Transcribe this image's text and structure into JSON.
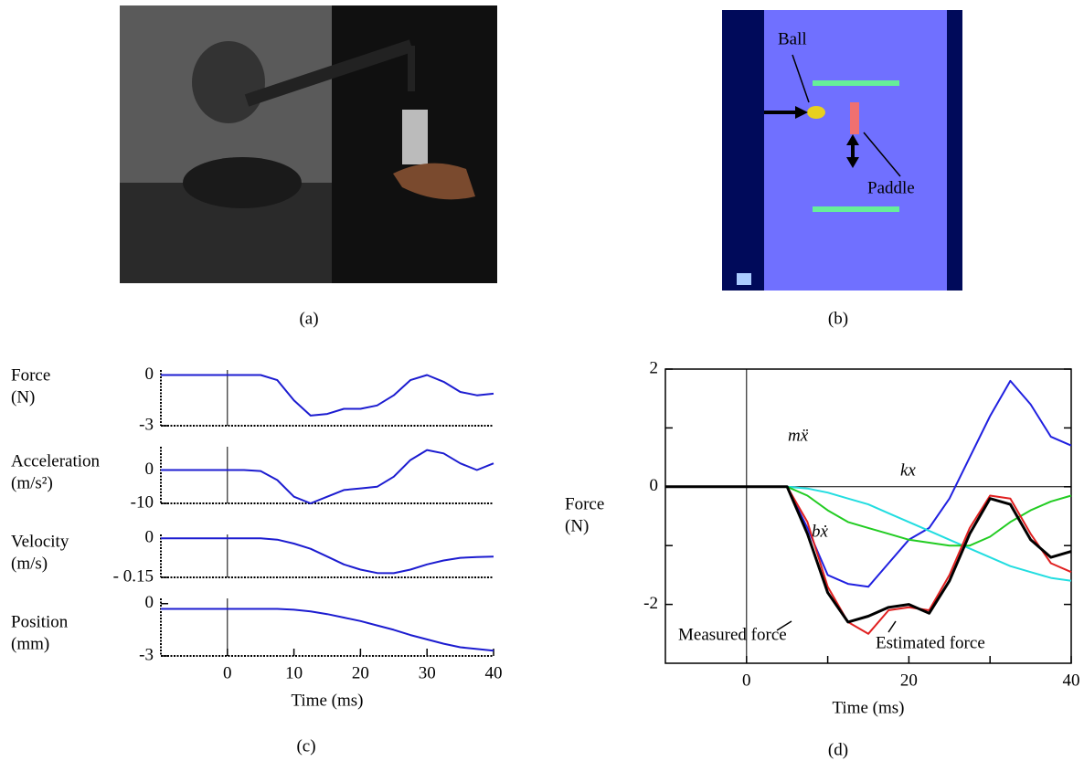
{
  "captions": [
    "(a)",
    "(b)",
    "(c)",
    "(d)"
  ],
  "diagram": {
    "labels": [
      "Ball",
      "Paddle"
    ]
  },
  "chart_data": [
    {
      "type": "line",
      "ylabel": [
        "Force",
        "(N)"
      ],
      "xlim": [
        -10,
        40
      ],
      "ylim": [
        -3,
        0.3
      ],
      "yticks": [
        0,
        -3
      ],
      "x": [
        -10,
        -5,
        0,
        2.5,
        5,
        7.5,
        10,
        12.5,
        15,
        17.5,
        20,
        22.5,
        25,
        27.5,
        30,
        32.5,
        35,
        37.5,
        40
      ],
      "series": [
        {
          "color": "#1c1cd0",
          "values": [
            0,
            0,
            0,
            0,
            0,
            -0.3,
            -1.5,
            -2.4,
            -2.3,
            -2.0,
            -2.0,
            -1.8,
            -1.2,
            -0.3,
            0,
            -0.4,
            -1.0,
            -1.2,
            -1.1
          ]
        }
      ]
    },
    {
      "type": "line",
      "ylabel": [
        "Acceleration",
        "(m/s²)"
      ],
      "xlim": [
        -10,
        40
      ],
      "ylim": [
        -10,
        7
      ],
      "yticks": [
        0,
        -10
      ],
      "x": [
        -10,
        -5,
        0,
        2.5,
        5,
        7.5,
        10,
        12.5,
        15,
        17.5,
        20,
        22.5,
        25,
        27.5,
        30,
        32.5,
        35,
        37.5,
        40
      ],
      "series": [
        {
          "color": "#1c1cd0",
          "values": [
            0,
            0,
            0,
            0,
            -0.3,
            -3,
            -8,
            -10,
            -8,
            -6,
            -5.5,
            -5,
            -2,
            3,
            6,
            5,
            2,
            0,
            2
          ]
        }
      ]
    },
    {
      "type": "line",
      "ylabel": [
        "Velocity",
        "(m/s)"
      ],
      "xlim": [
        -10,
        40
      ],
      "ylim": [
        -0.15,
        0.015
      ],
      "yticks": [
        0,
        {
          "value": -0.15,
          "label": "- 0.15"
        }
      ],
      "x": [
        -10,
        -5,
        0,
        2.5,
        5,
        7.5,
        10,
        12.5,
        15,
        17.5,
        20,
        22.5,
        25,
        27.5,
        30,
        32.5,
        35,
        37.5,
        40
      ],
      "series": [
        {
          "color": "#1c1cd0",
          "values": [
            0,
            0,
            0,
            0,
            0,
            -0.005,
            -0.02,
            -0.04,
            -0.07,
            -0.1,
            -0.12,
            -0.133,
            -0.134,
            -0.12,
            -0.1,
            -0.085,
            -0.075,
            -0.072,
            -0.07
          ]
        }
      ]
    },
    {
      "type": "line",
      "ylabel": [
        "Position",
        "(mm)"
      ],
      "xlim": [
        -10,
        40
      ],
      "ylim": [
        -3,
        0.3
      ],
      "yticks": [
        0,
        -3
      ],
      "xticks": [
        0,
        10,
        20,
        30,
        40
      ],
      "xlabel": "Time (ms)",
      "x": [
        -10,
        -5,
        0,
        2.5,
        5,
        7.5,
        10,
        12.5,
        15,
        17.5,
        20,
        22.5,
        25,
        27.5,
        30,
        32.5,
        35,
        37.5,
        40
      ],
      "series": [
        {
          "color": "#1c1cd0",
          "values": [
            -0.3,
            -0.3,
            -0.3,
            -0.3,
            -0.3,
            -0.3,
            -0.35,
            -0.45,
            -0.6,
            -0.8,
            -1.0,
            -1.25,
            -1.5,
            -1.8,
            -2.05,
            -2.3,
            -2.5,
            -2.6,
            -2.7
          ]
        }
      ]
    },
    {
      "type": "line",
      "ylabel": [
        "Force",
        "(N)"
      ],
      "xlabel": "Time (ms)",
      "xlim": [
        -10,
        40
      ],
      "ylim": [
        -3,
        2
      ],
      "xticks": [
        0,
        20,
        40
      ],
      "xticks_minor": [
        10,
        30
      ],
      "yticks": [
        2,
        0,
        -2
      ],
      "yticks_minor": [
        1,
        -1
      ],
      "x": [
        -10,
        -5,
        0,
        2.5,
        5,
        7.5,
        10,
        12.5,
        15,
        17.5,
        20,
        22.5,
        25,
        27.5,
        30,
        32.5,
        35,
        37.5,
        40
      ],
      "series": [
        {
          "name": "mẍ",
          "color": "#2020e0",
          "values": [
            0,
            0,
            0,
            0,
            0,
            -0.7,
            -1.5,
            -1.65,
            -1.7,
            -1.3,
            -0.9,
            -0.7,
            -0.2,
            0.5,
            1.2,
            1.8,
            1.4,
            0.85,
            0.7
          ]
        },
        {
          "name": "kx",
          "color": "#22dde0",
          "values": [
            0,
            0,
            0,
            0,
            0,
            -0.03,
            -0.1,
            -0.2,
            -0.3,
            -0.45,
            -0.6,
            -0.75,
            -0.9,
            -1.05,
            -1.2,
            -1.35,
            -1.45,
            -1.55,
            -1.6
          ]
        },
        {
          "name": "bẋ",
          "color": "#22cc22",
          "values": [
            0,
            0,
            0,
            0,
            0,
            -0.15,
            -0.4,
            -0.6,
            -0.7,
            -0.8,
            -0.9,
            -0.95,
            -1.0,
            -1.0,
            -0.85,
            -0.6,
            -0.4,
            -0.25,
            -0.15
          ]
        },
        {
          "name": "Estimated force",
          "color": "#e02020",
          "values": [
            0,
            0,
            0,
            0,
            0,
            -0.6,
            -1.7,
            -2.3,
            -2.5,
            -2.1,
            -2.05,
            -2.1,
            -1.5,
            -0.7,
            -0.15,
            -0.2,
            -0.8,
            -1.3,
            -1.45
          ]
        },
        {
          "name": "Measured force",
          "color": "#000000",
          "values": [
            0,
            0,
            0,
            0,
            0,
            -0.8,
            -1.8,
            -2.3,
            -2.2,
            -2.05,
            -2.0,
            -2.15,
            -1.6,
            -0.8,
            -0.2,
            -0.3,
            -0.9,
            -1.2,
            -1.1
          ]
        }
      ]
    }
  ]
}
